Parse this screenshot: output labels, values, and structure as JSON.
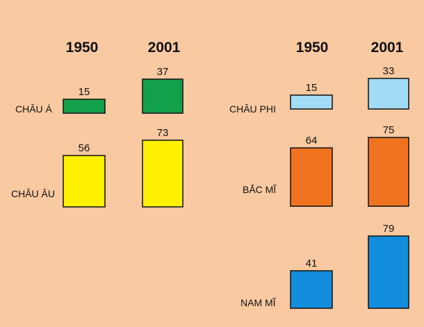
{
  "chart_data": {
    "type": "bar",
    "years": [
      "1950",
      "2001"
    ],
    "regions": [
      {
        "name": "CHÂU Á",
        "values": [
          15,
          37
        ],
        "color": "#12a04a"
      },
      {
        "name": "CHÂU ÂU",
        "values": [
          56,
          73
        ],
        "color": "#fff200"
      },
      {
        "name": "CHÂU PHI",
        "values": [
          15,
          33
        ],
        "color": "#a2dbf6"
      },
      {
        "name": "BẮC MĨ",
        "values": [
          64,
          75
        ],
        "color": "#f07320"
      },
      {
        "name": "NAM MĨ",
        "values": [
          41,
          79
        ],
        "color": "#118ddc"
      }
    ]
  }
}
